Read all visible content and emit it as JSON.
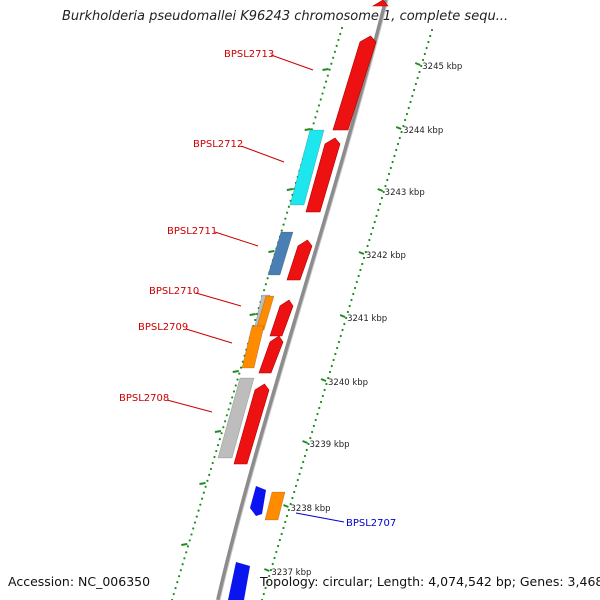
{
  "title": "Burkholderia pseudomallei K96243 chromosome 1, complete sequ...",
  "accession": "Accession: NC_006350",
  "summary": "Topology: circular; Length: 4,074,542 bp; Genes: 3,468",
  "colors": {
    "backbone": "#8c8c8c",
    "gc_skew": "#1e8c1e",
    "forward_gene": "#ee1111",
    "gene_label": "#cc0000",
    "reverse_label": "#0000cc",
    "cyan_gene": "#1ee6ee",
    "steelblue_gene": "#4a7fb5",
    "orange_gene": "#ff8c00",
    "grey_gene": "#bdbdbd",
    "blue_gene": "#0a14ee"
  },
  "ticks": [
    "3245 kbp",
    "3244 kbp",
    "3243 kbp",
    "3242 kbp",
    "3241 kbp",
    "3240 kbp",
    "3239 kbp",
    "3238 kbp",
    "3237 kbp"
  ],
  "gene_labels": [
    {
      "text": "BPSL2713",
      "strand": "forward"
    },
    {
      "text": "BPSL2712",
      "strand": "forward"
    },
    {
      "text": "BPSL2711",
      "strand": "forward"
    },
    {
      "text": "BPSL2710",
      "strand": "forward"
    },
    {
      "text": "BPSL2709",
      "strand": "forward"
    },
    {
      "text": "BPSL2708",
      "strand": "forward"
    },
    {
      "text": "BPSL2707",
      "strand": "reverse"
    }
  ]
}
